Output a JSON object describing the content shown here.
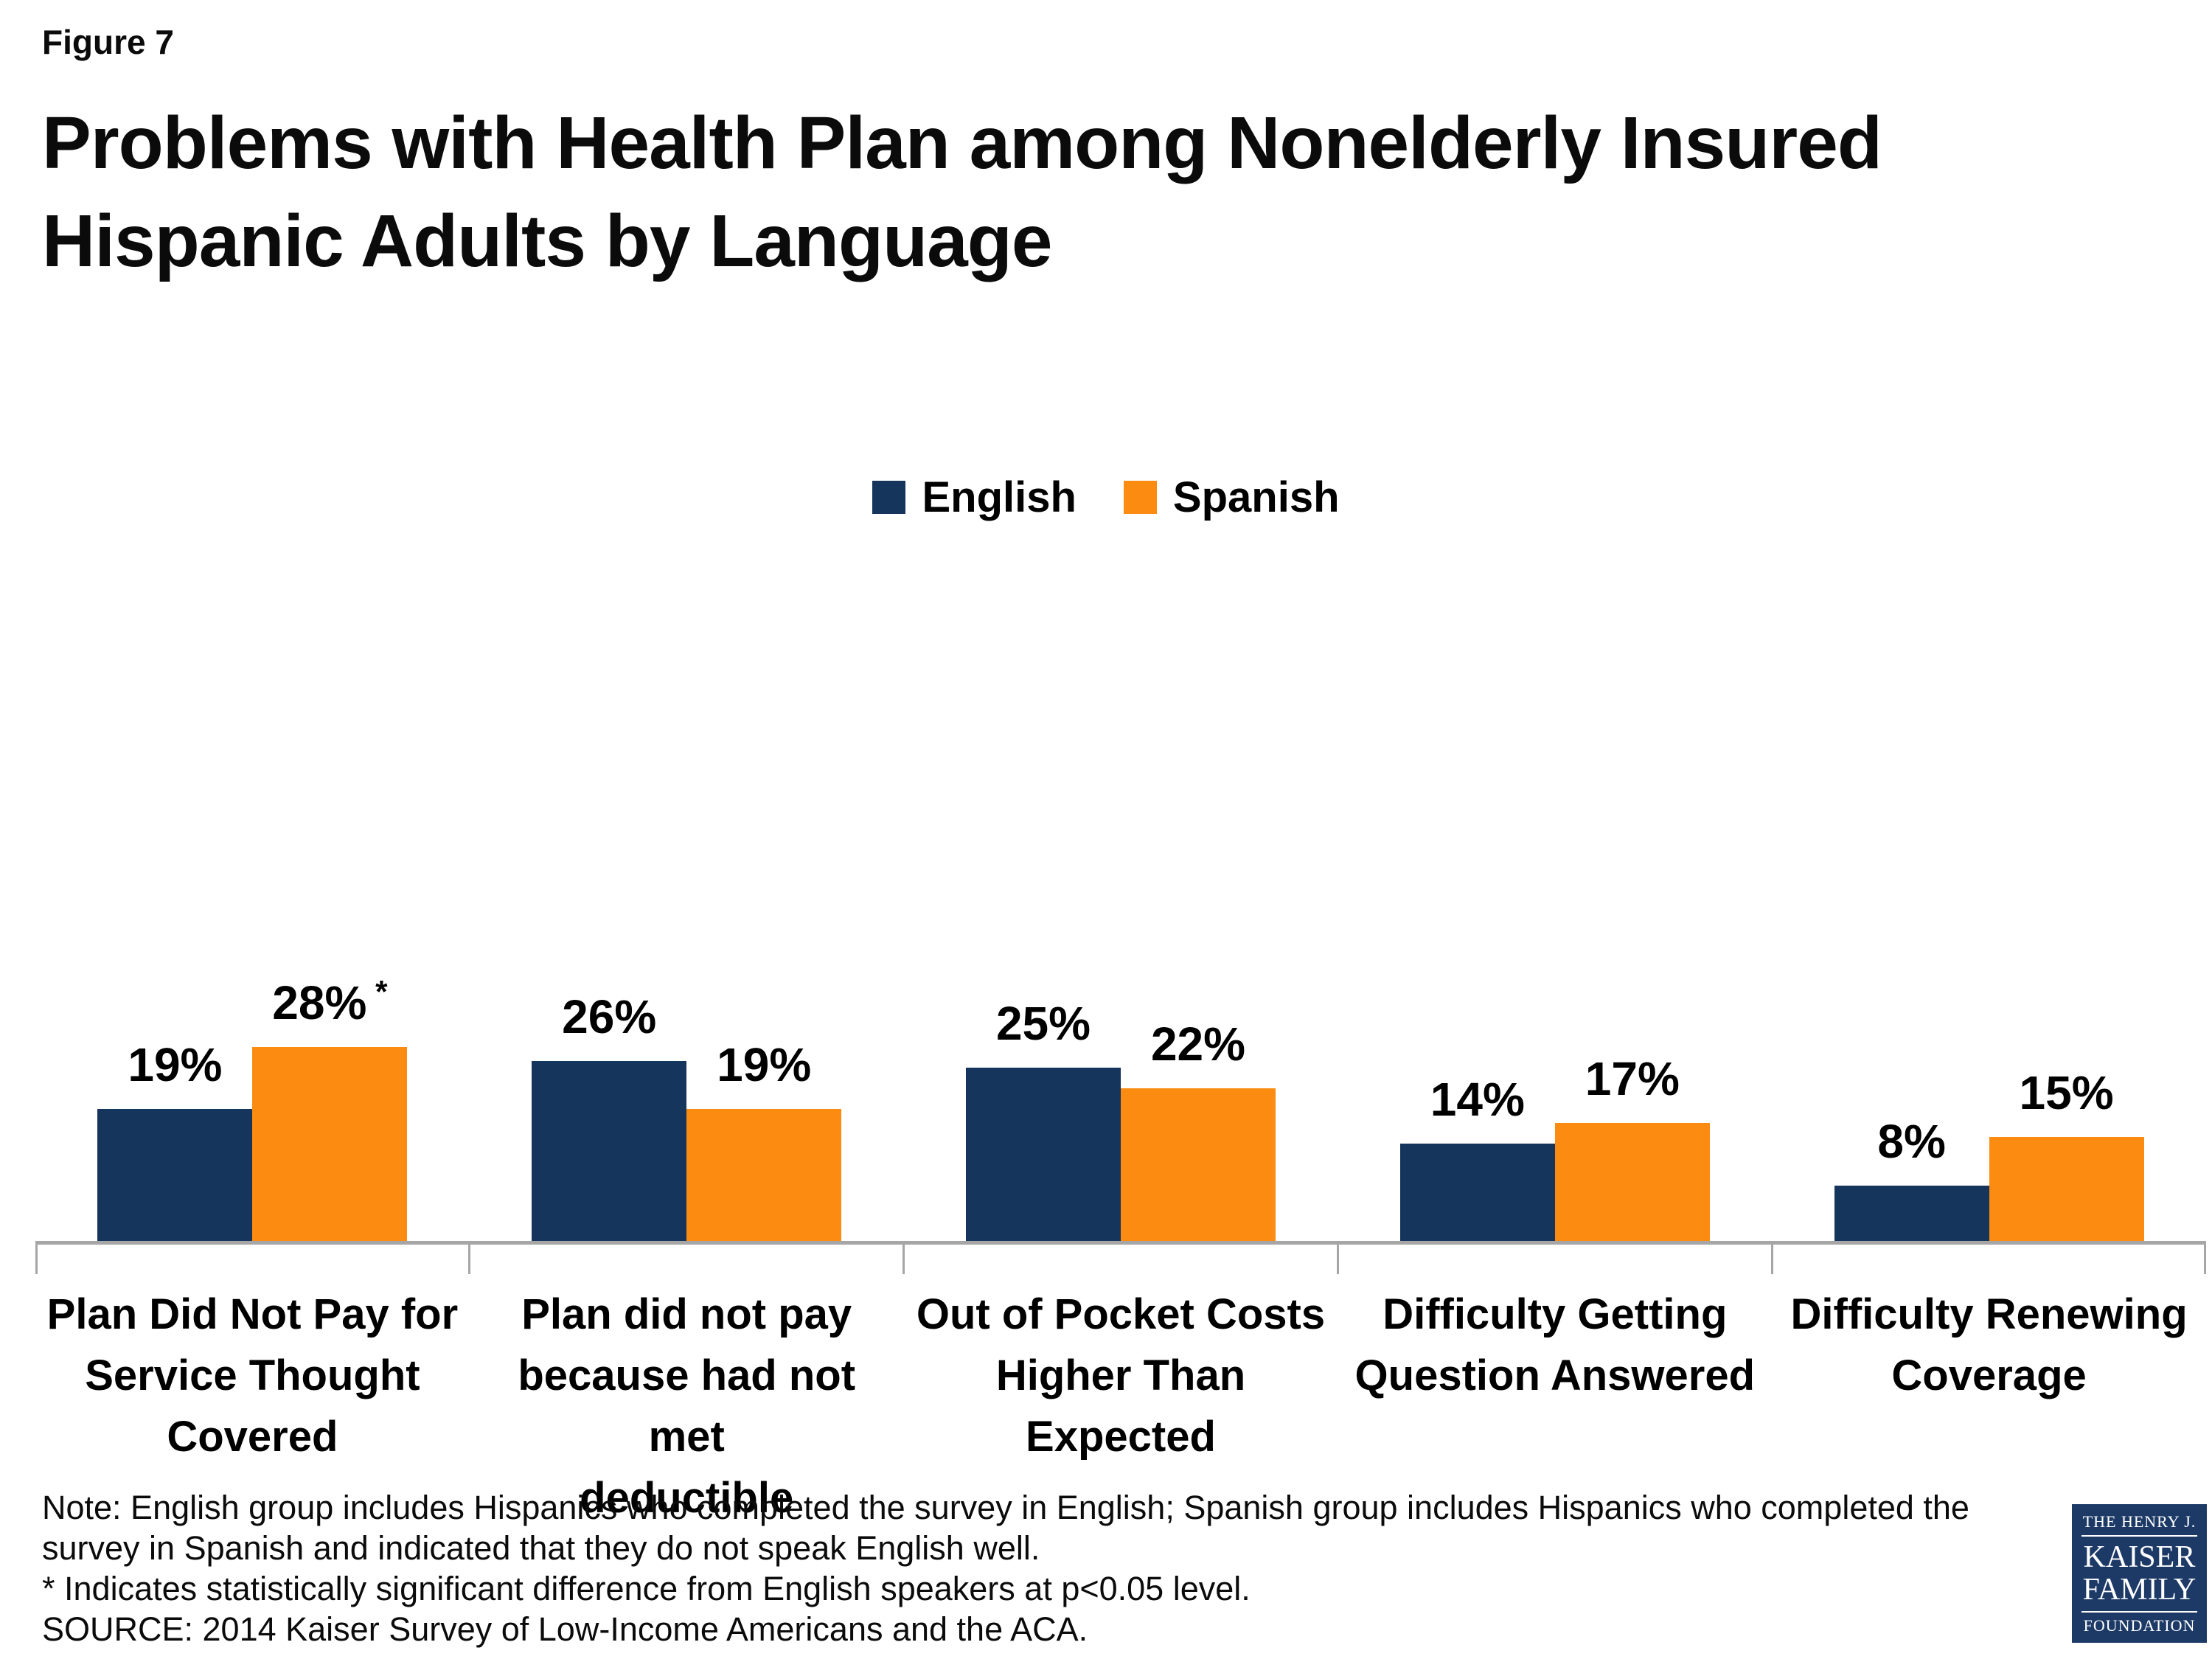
{
  "header": {
    "figure_label": "Figure 7",
    "title_line1": "Problems with Health Plan among Nonelderly Insured",
    "title_line2": "Hispanic Adults by Language"
  },
  "legend": {
    "items": [
      {
        "label": "English",
        "color": "#16355c"
      },
      {
        "label": "Spanish",
        "color": "#fb8c11"
      }
    ]
  },
  "chart_data": {
    "type": "bar",
    "title": "Problems with Health Plan among Nonelderly Insured Hispanic Adults by Language",
    "categories": [
      "Plan Did Not Pay for\nService Thought\nCovered",
      "Plan did not pay\nbecause had not met\ndeductible",
      "Out of Pocket Costs\nHigher Than\nExpected",
      "Difficulty Getting\nQuestion Answered",
      "Difficulty Renewing\nCoverage"
    ],
    "series": [
      {
        "name": "English",
        "color": "#16355c",
        "values": [
          19,
          26,
          25,
          14,
          8
        ],
        "labels": [
          "19%",
          "26%",
          "25%",
          "14%",
          "8%"
        ]
      },
      {
        "name": "Spanish",
        "color": "#fb8c11",
        "values": [
          28,
          19,
          22,
          17,
          15
        ],
        "labels": [
          "28%",
          "19%",
          "22%",
          "17%",
          "15%"
        ]
      }
    ],
    "significance_marker": {
      "symbol": "*",
      "series_index": 1,
      "category_index": 0
    },
    "value_suffix": "%",
    "ylim": [
      0,
      30
    ],
    "grid": false,
    "y_axis_shown": false,
    "legend_position": "top-center",
    "axis_color": "#a6a6a6",
    "data_labels": true
  },
  "notes": {
    "line1": "Note: English group includes Hispanics who completed the survey in English; Spanish group includes Hispanics who completed the",
    "line2": "survey in Spanish and indicated that they do not speak English well.",
    "line3": "* Indicates statistically significant difference from English speakers at p<0.05 level.",
    "line4": "SOURCE: 2014 Kaiser Survey of Low-Income Americans and the ACA."
  },
  "logo": {
    "line1": "THE HENRY J.",
    "line2": "KAISER",
    "line3": "FAMILY",
    "line4": "FOUNDATION"
  }
}
